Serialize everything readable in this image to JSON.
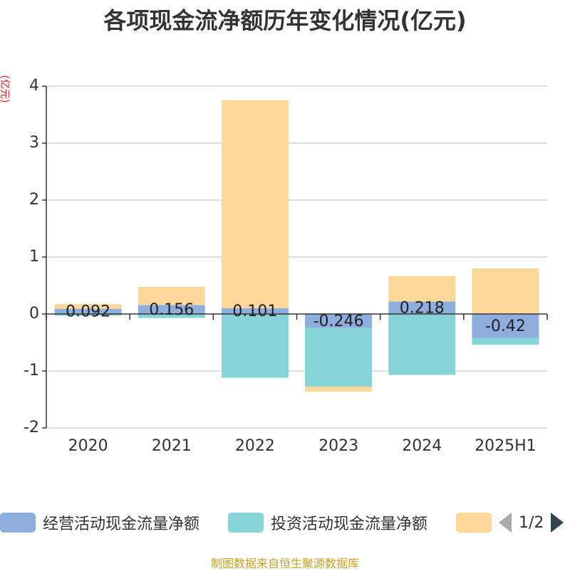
{
  "title": "各项现金流净额历年变化情况(亿元)",
  "source_note": "制图数据来自恒生聚源数据库",
  "legend_pager": "1/2",
  "chart_data": {
    "type": "bar",
    "stacked": true,
    "title": "各项现金流净额历年变化情况(亿元)",
    "ylabel": "(亿元)",
    "ylim": [
      -2,
      4
    ],
    "yticks": [
      4,
      3,
      2,
      1,
      0,
      -1,
      -2
    ],
    "grid": true,
    "legend_position": "bottom",
    "categories": [
      "2020",
      "2021",
      "2022",
      "2023",
      "2024",
      "2025H1"
    ],
    "series": [
      {
        "name": "经营活动现金流量净额",
        "color": "#8eaede",
        "values": [
          0.092,
          0.156,
          0.101,
          -0.246,
          0.218,
          -0.42
        ],
        "labels": [
          "0.092",
          "0.156",
          "0.101",
          "-0.246",
          "0.218",
          "-0.42"
        ]
      },
      {
        "name": "投资活动现金流量净额",
        "color": "#86d4d8",
        "values": [
          -0.03,
          -0.07,
          -1.12,
          -1.03,
          -1.07,
          -0.12
        ]
      },
      {
        "name": "",
        "color": "#fed898",
        "values": [
          0.08,
          0.32,
          3.65,
          -0.09,
          0.45,
          0.8
        ]
      }
    ]
  }
}
